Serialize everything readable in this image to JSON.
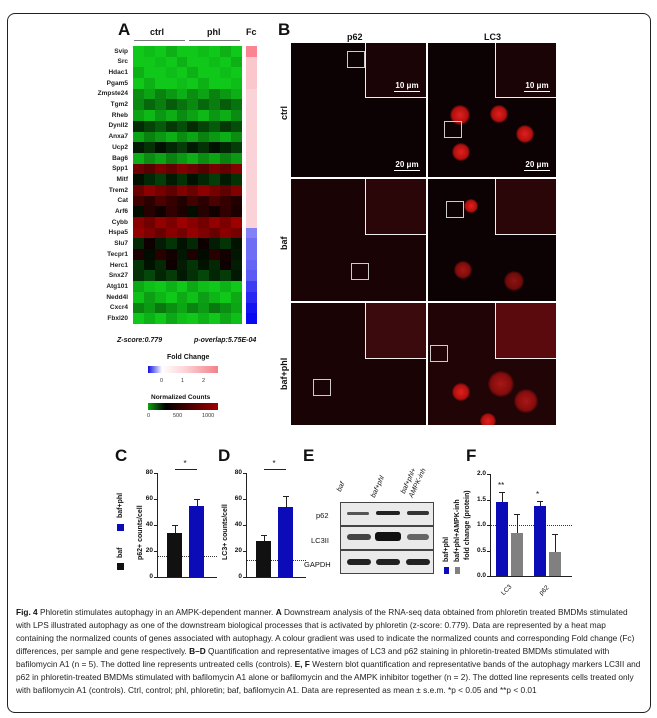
{
  "figure": {
    "panels": {
      "A": {
        "letter": "A",
        "groups": [
          "ctrl",
          "phl"
        ],
        "fc_header": "Fc",
        "genes": [
          "Svip",
          "Src",
          "Hdac1",
          "Pgam5",
          "Zmpste24",
          "Tgm2",
          "Rheb",
          "Dynll2",
          "Anxa7",
          "Ucp2",
          "Bag6",
          "Spp1",
          "Mitf",
          "Trem2",
          "Cat",
          "Arf6",
          "Cybb",
          "Hspa5",
          "Slu7",
          "Tecpr1",
          "Herc1",
          "Snx27",
          "Atg101",
          "Nedd4l",
          "Cxcr4",
          "Fbxl20"
        ],
        "z_score": "Z-score:0.779",
        "p_overlap": "p-overlap:5.75E-04",
        "fold_change_legend": {
          "title": "Fold Change",
          "ticks": [
            "0",
            "1",
            "2"
          ]
        },
        "normalized_counts_legend": {
          "title": "Normalized Counts",
          "ticks": [
            "0",
            "500",
            "1000"
          ]
        }
      },
      "B": {
        "letter": "B",
        "columns": [
          "p62",
          "LC3"
        ],
        "rows": [
          "ctrl",
          "baf",
          "baf+phl"
        ],
        "scale_large": "20 μm",
        "scale_small": "10 μm"
      },
      "C": {
        "letter": "C",
        "ylabel": "p62+ counts/cell",
        "sig": "*"
      },
      "D": {
        "letter": "D",
        "ylabel": "LC3+ counts/cell",
        "sig": "*"
      },
      "CD_legend": [
        "baf",
        "baf+phl"
      ],
      "E": {
        "letter": "E",
        "lanes": [
          "baf",
          "baf+phl",
          "baf+phl+\nAMPK-inh"
        ],
        "lane1": "baf",
        "lane2": "baf+phl",
        "lane3a": "baf+phl+",
        "lane3b": "AMPK-inh",
        "bands": [
          "p62",
          "LC3II",
          "GAPDH"
        ]
      },
      "F": {
        "letter": "F",
        "ylabel": "fold change (protein)",
        "legend": [
          "baf+phl",
          "baf+phl+AMPK-inh"
        ],
        "sig_lc3": "**",
        "sig_p62": "*"
      }
    },
    "caption": {
      "label": "Fig. 4",
      "title": "Phloretin stimulates autophagy in an AMPK-dependent manner.",
      "a_label": "A",
      "a_text": "Downstream analysis of the RNA-seq data obtained from phloretin treated BMDMs stimulated with LPS illustrated autophagy as one of the downstream biological processes that is activated by phloretin (z-score: 0.779). Data are represented by a heat map containing the normalized counts of genes associated with autophagy. A colour gradient was used to indicate the normalized counts and corresponding Fold change (Fc) differences, per sample and gene respectively.",
      "bd_label": "B–D",
      "bd_text": "Quantification and representative images of LC3 and p62 staining in phloretin-treated BMDMs stimulated with bafilomycin A1 (n = 5). The dotted line represents untreated cells (controls).",
      "ef_label": "E, F",
      "ef_text": "Western blot quantification and representative bands of the autophagy markers LC3II and p62 in phloretin-treated BMDMs stimulated with bafilomycin A1 alone or bafilomycin and the AMPK inhibitor together (n = 2). The dotted line represents cells treated only with bafilomycin A1 (controls). Ctrl, control; phl, phloretin; baf, bafilomycin A1. Data are represented as mean ± s.e.m. *p < 0.05 and **p < 0.01"
    },
    "colors": {
      "blue": "#0b0bb8",
      "gray": "#808080",
      "black": "#111111",
      "heat_green": "#0fc01a",
      "heat_red": "#b00000"
    }
  },
  "chart_data": [
    {
      "type": "bar",
      "panel": "C",
      "categories": [
        "baf",
        "baf+phl"
      ],
      "values": [
        34,
        55
      ],
      "errors": [
        6,
        5
      ],
      "colors": [
        "#111111",
        "#0b0bb8"
      ],
      "xlabel": "",
      "ylabel": "p62+ counts/cell",
      "yticks": [
        0,
        20,
        40,
        60,
        80
      ],
      "ylim": [
        0,
        80
      ],
      "reference_line": 16,
      "significance": "*"
    },
    {
      "type": "bar",
      "panel": "D",
      "categories": [
        "baf",
        "baf+phl"
      ],
      "values": [
        28,
        54
      ],
      "errors": [
        4,
        8
      ],
      "colors": [
        "#111111",
        "#0b0bb8"
      ],
      "xlabel": "",
      "ylabel": "LC3+ counts/cell",
      "yticks": [
        0,
        20,
        40,
        60,
        80
      ],
      "ylim": [
        0,
        80
      ],
      "reference_line": 13,
      "significance": "*"
    },
    {
      "type": "bar",
      "panel": "F",
      "categories": [
        "LC3",
        "p62"
      ],
      "series": [
        {
          "name": "baf+phl",
          "values": [
            1.45,
            1.37
          ],
          "errors": [
            0.2,
            0.11
          ],
          "color": "#0b0bb8"
        },
        {
          "name": "baf+phl+AMPK-inh",
          "values": [
            0.84,
            0.48
          ],
          "errors": [
            0.37,
            0.34
          ],
          "color": "#808080"
        }
      ],
      "xlabel": "",
      "ylabel": "fold change (protein)",
      "yticks": [
        "0.0",
        "0.5",
        "1.0",
        "1.5",
        "2.0"
      ],
      "ylim": [
        0,
        2.0
      ],
      "reference_line": 1.0,
      "significance": [
        "**",
        "*"
      ]
    },
    {
      "type": "heatmap",
      "panel": "A",
      "rows": [
        "Svip",
        "Src",
        "Hdac1",
        "Pgam5",
        "Zmpste24",
        "Tgm2",
        "Rheb",
        "Dynll2",
        "Anxa7",
        "Ucp2",
        "Bag6",
        "Spp1",
        "Mitf",
        "Trem2",
        "Cat",
        "Arf6",
        "Cybb",
        "Hspa5",
        "Slu7",
        "Tecpr1",
        "Herc1",
        "Snx27",
        "Atg101",
        "Nedd4l",
        "Cxcr4",
        "Fbxl20"
      ],
      "columns": [
        "ctrl",
        "ctrl",
        "ctrl",
        "ctrl",
        "ctrl",
        "phl",
        "phl",
        "phl",
        "phl",
        "phl"
      ],
      "colorscale": "green(0)-black(500)-red(1000)",
      "fc_colorscale": "blue(0)-white(1)-red(2)",
      "legend_ticks_counts": [
        0,
        500,
        1000
      ],
      "legend_ticks_fc": [
        0,
        1,
        2
      ]
    }
  ]
}
